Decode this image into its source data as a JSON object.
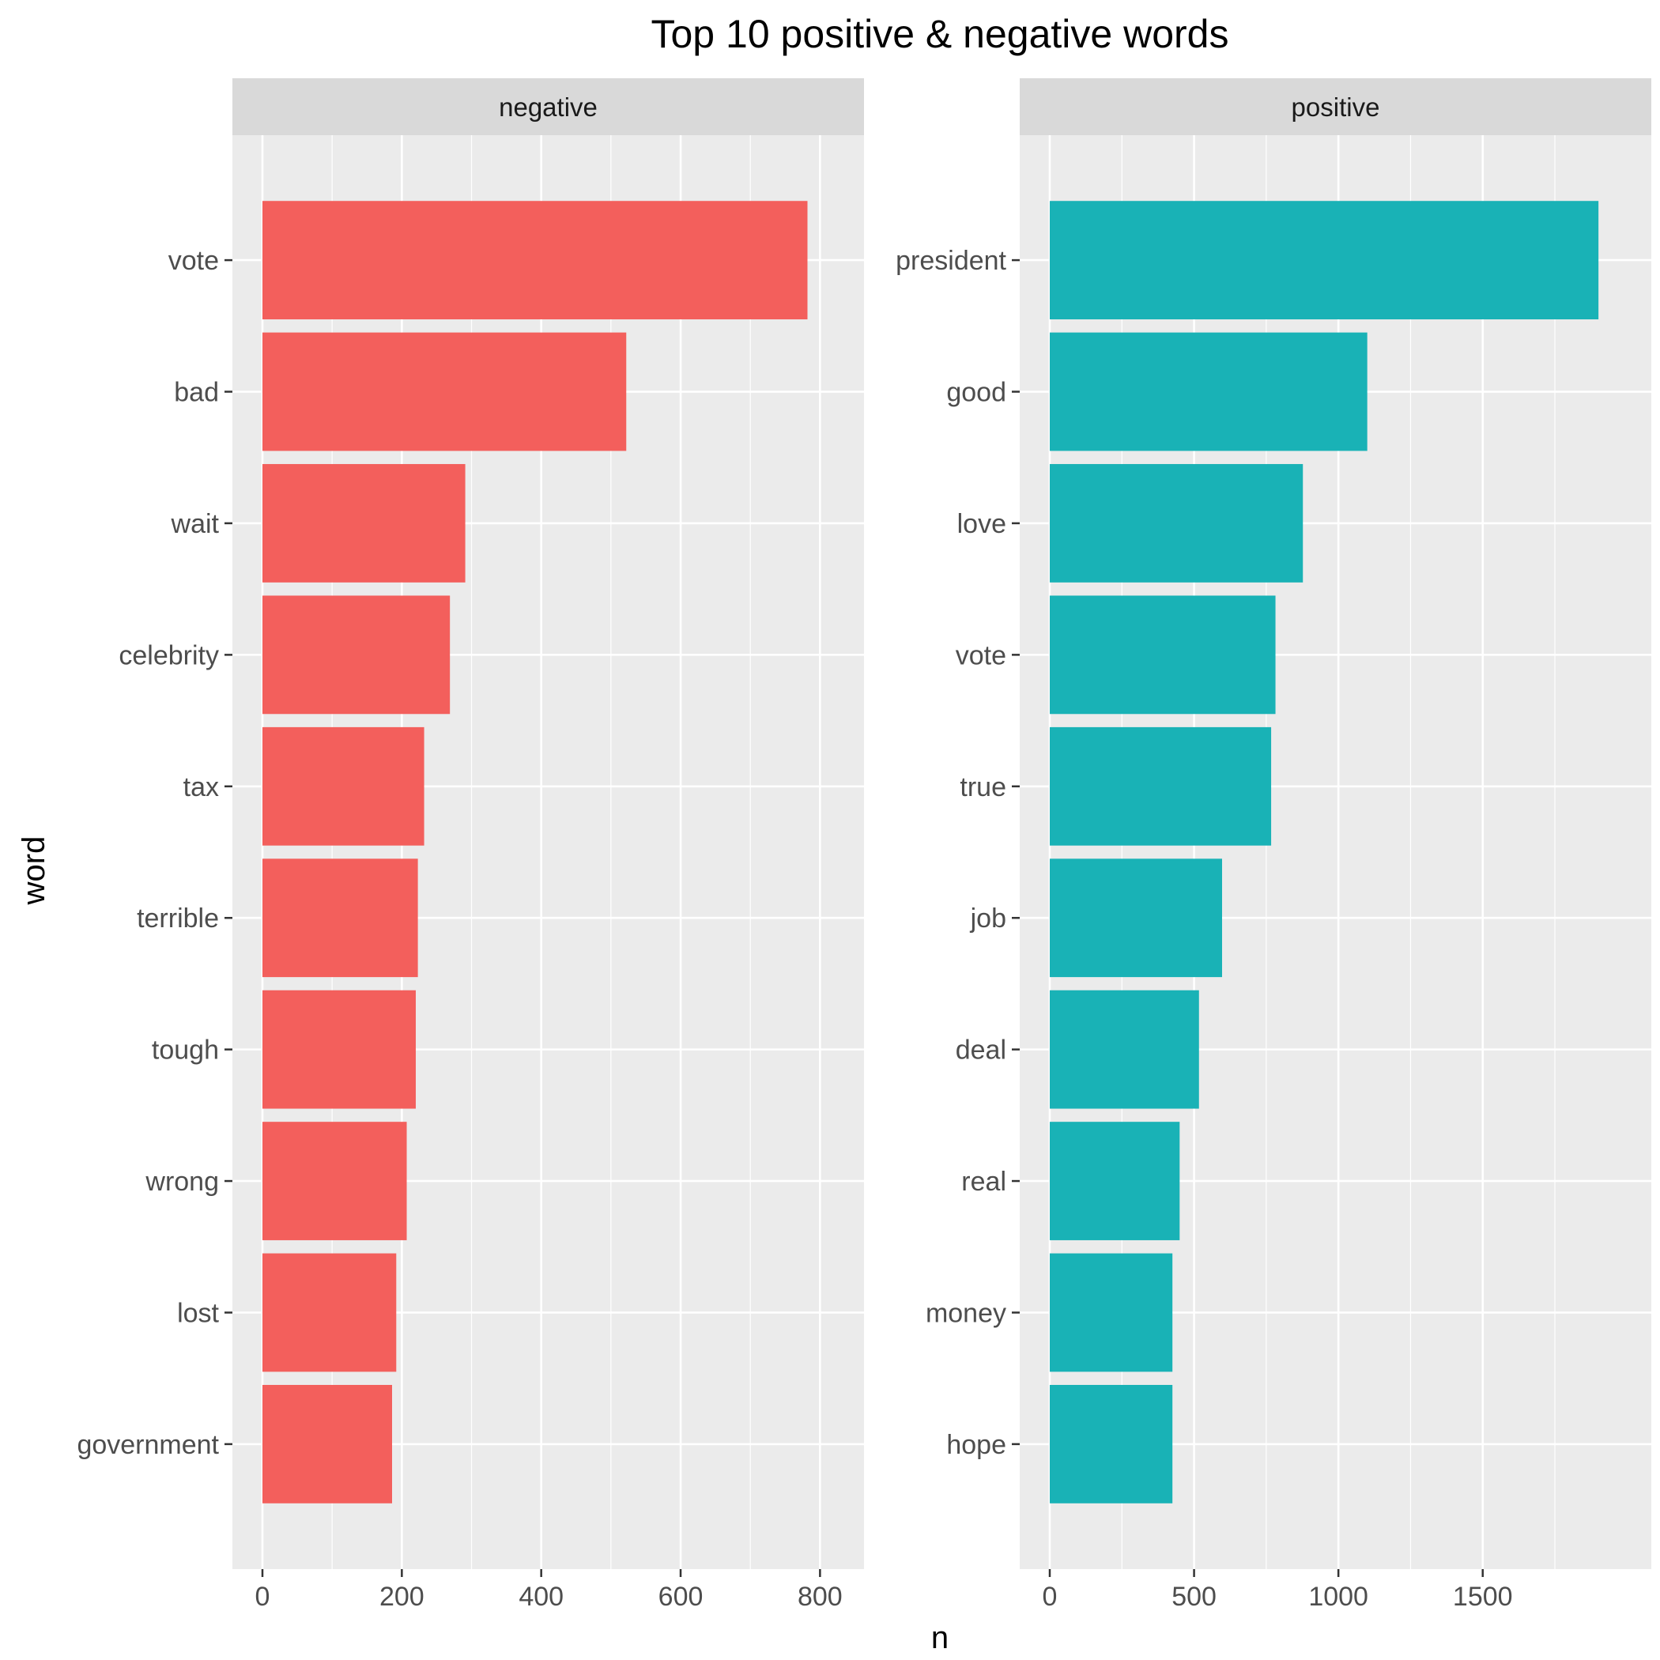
{
  "chart_data": {
    "type": "bar",
    "orientation": "horizontal",
    "title": "Top 10 positive & negative words",
    "xlabel": "n",
    "ylabel": "word",
    "grid": true,
    "facets": [
      {
        "name": "negative",
        "color": "#F35F5C",
        "xlim": [
          0,
          820
        ],
        "xticks": [
          0,
          200,
          400,
          600,
          800
        ],
        "categories": [
          "vote",
          "bad",
          "wait",
          "celebrity",
          "tax",
          "terrible",
          "tough",
          "wrong",
          "lost",
          "government"
        ],
        "values": [
          782,
          522,
          291,
          269,
          232,
          223,
          220,
          207,
          192,
          186
        ]
      },
      {
        "name": "positive",
        "color": "#19B2B6",
        "xlim": [
          0,
          1980
        ],
        "xticks": [
          0,
          500,
          1000,
          1500
        ],
        "categories": [
          "president",
          "good",
          "love",
          "vote",
          "true",
          "job",
          "deal",
          "real",
          "money",
          "hope"
        ],
        "values": [
          1901,
          1100,
          877,
          782,
          767,
          597,
          517,
          450,
          425,
          425
        ]
      }
    ]
  }
}
